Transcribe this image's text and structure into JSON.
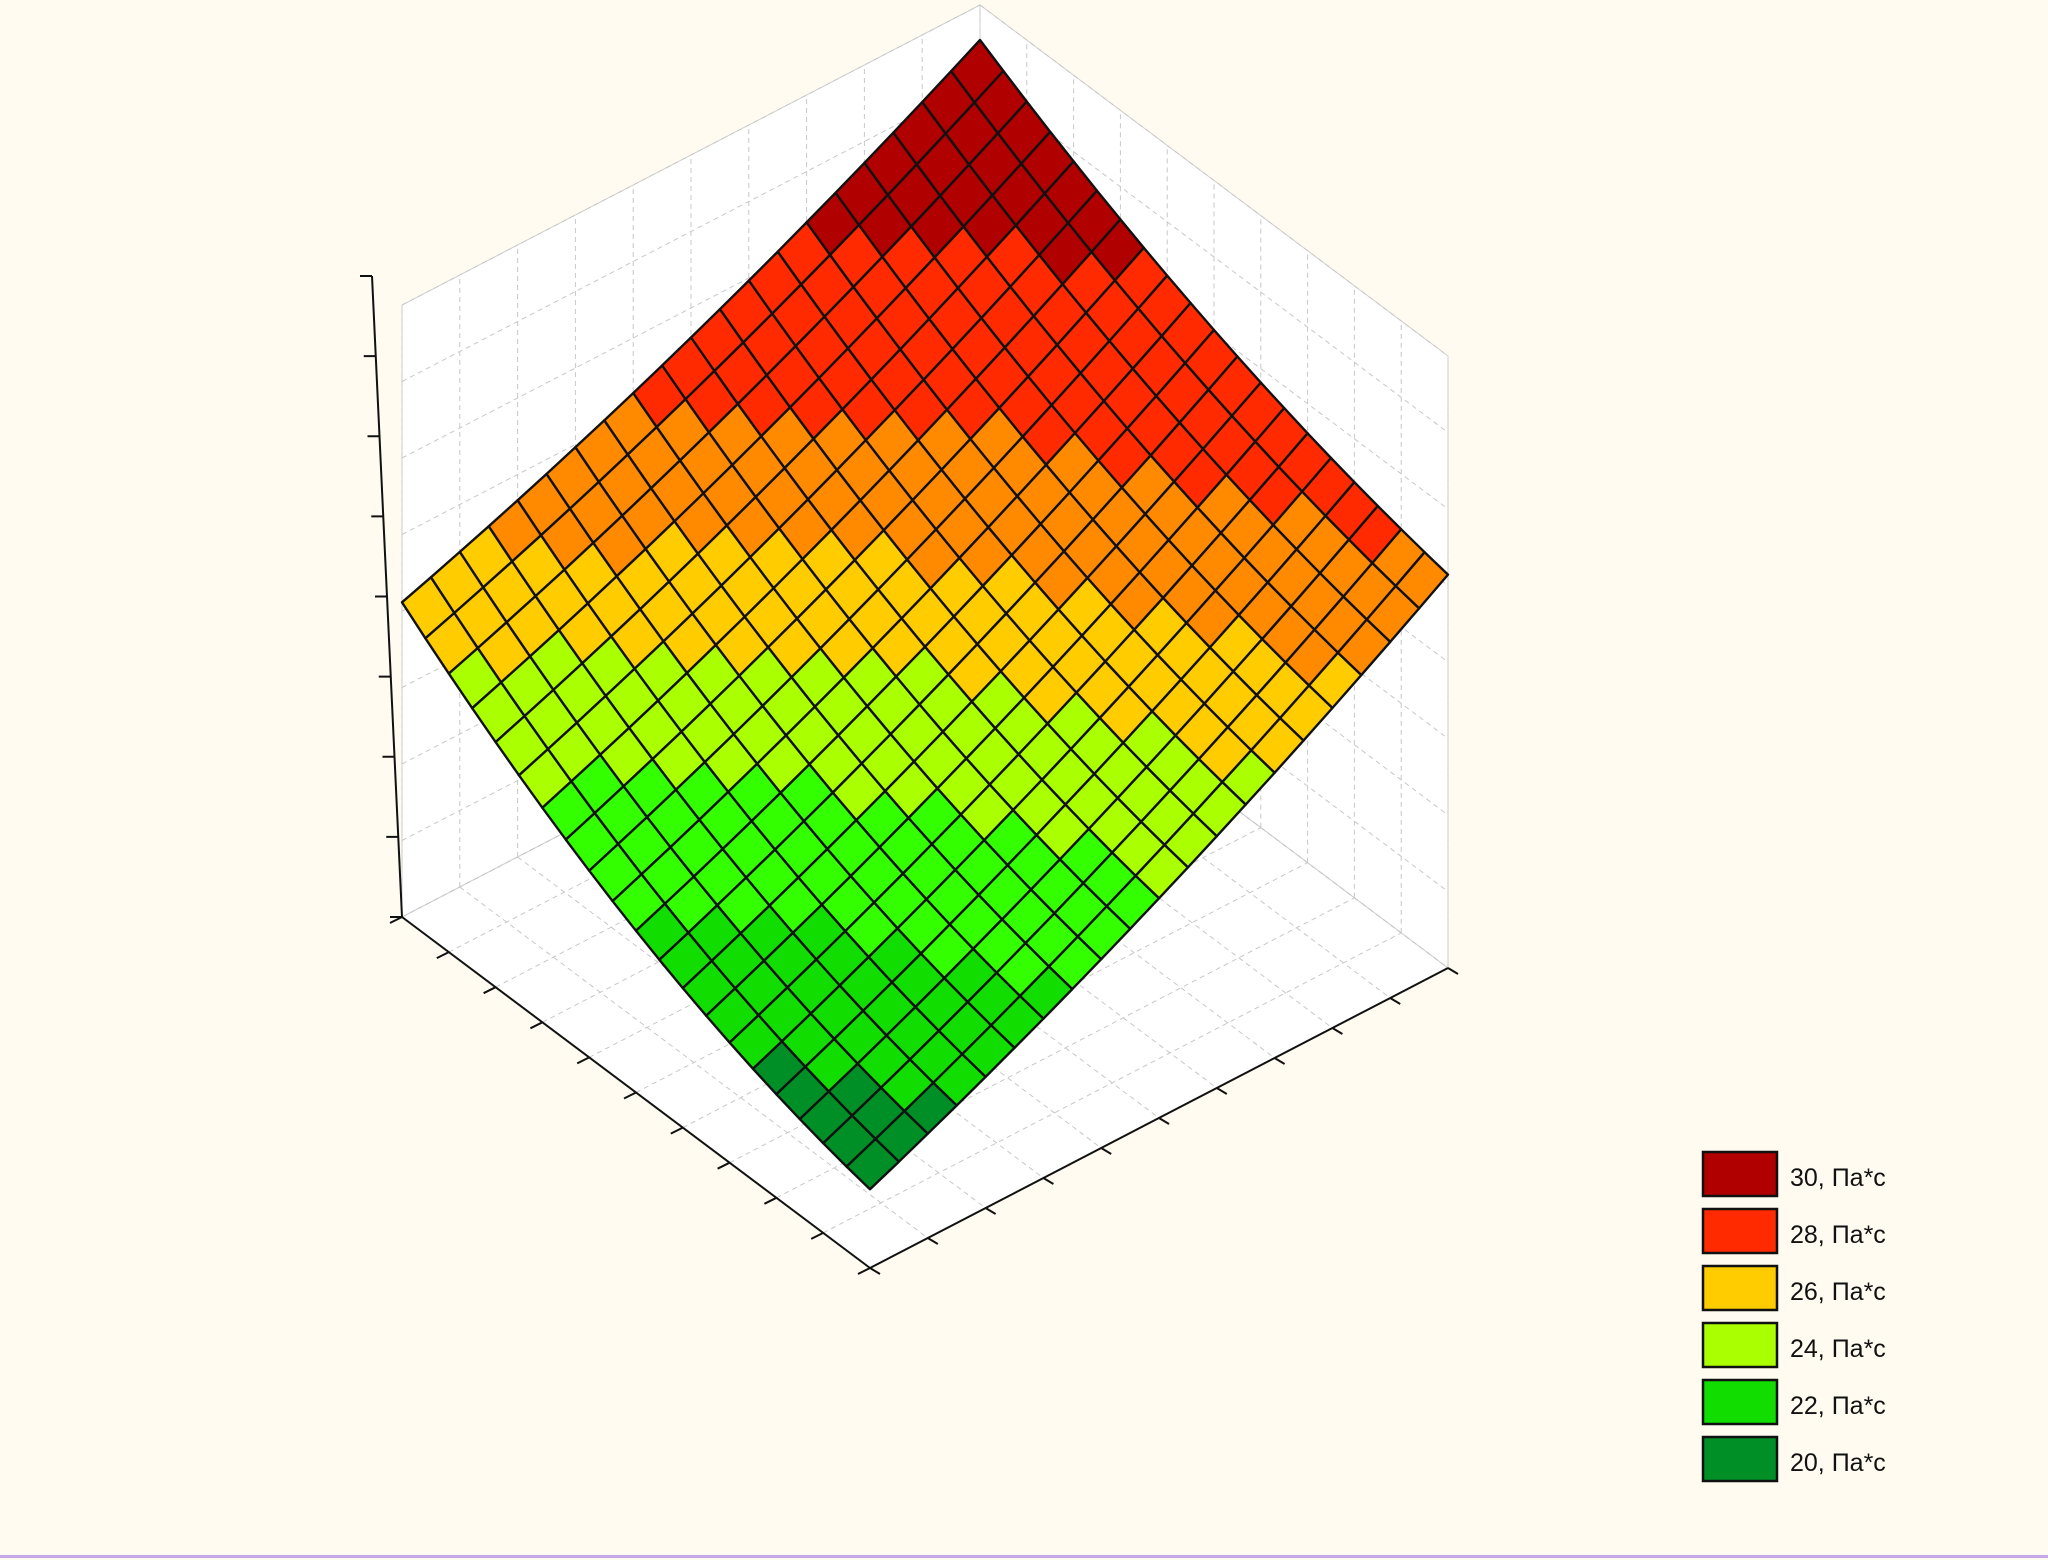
{
  "colors": {
    "background": "#fffbf0",
    "frame_border": "#c8a8e8"
  },
  "chart_data": {
    "type": "surface3d",
    "title": "",
    "xlabel": "",
    "ylabel": "",
    "zlabel": "",
    "x_ticks": [
      "",
      "",
      "",
      "",
      "",
      "",
      "",
      "",
      "",
      ""
    ],
    "y_ticks": [
      "",
      "",
      "",
      "",
      "",
      "",
      "",
      "",
      "",
      ""
    ],
    "z_ticks": [
      "",
      "",
      "",
      "",
      "",
      "",
      "",
      "",
      ""
    ],
    "grid": true,
    "legend_position": "bottom-right",
    "legend": [
      {
        "label": "30, Па*с",
        "color": "#b00000"
      },
      {
        "label": "28, Па*с",
        "color": "#ff2a00"
      },
      {
        "label": "26, Па*с",
        "color": "#ffcc00"
      },
      {
        "label": "24, Па*с",
        "color": "#aaff00"
      },
      {
        "label": "22, Па*с",
        "color": "#11dd00"
      },
      {
        "label": "20, Па*с",
        "color": "#008f26"
      }
    ],
    "surface": {
      "grid_size": 21,
      "corners": {
        "left_front": 25.2,
        "right_front": 27.0,
        "near": 19.8,
        "back": 31.2
      },
      "bands": [
        {
          "min": 29.0,
          "color": "#b00000"
        },
        {
          "min": 27.0,
          "color": "#ff2a00"
        },
        {
          "min": 25.6,
          "color": "#ff8a00"
        },
        {
          "min": 24.5,
          "color": "#ffcc00"
        },
        {
          "min": 23.2,
          "color": "#aaff00"
        },
        {
          "min": 21.9,
          "color": "#33ff00"
        },
        {
          "min": 20.7,
          "color": "#11dd00"
        },
        {
          "min": 20.0,
          "color": "#008f26"
        },
        {
          "min": -999,
          "color": "#006e3a"
        }
      ]
    }
  }
}
